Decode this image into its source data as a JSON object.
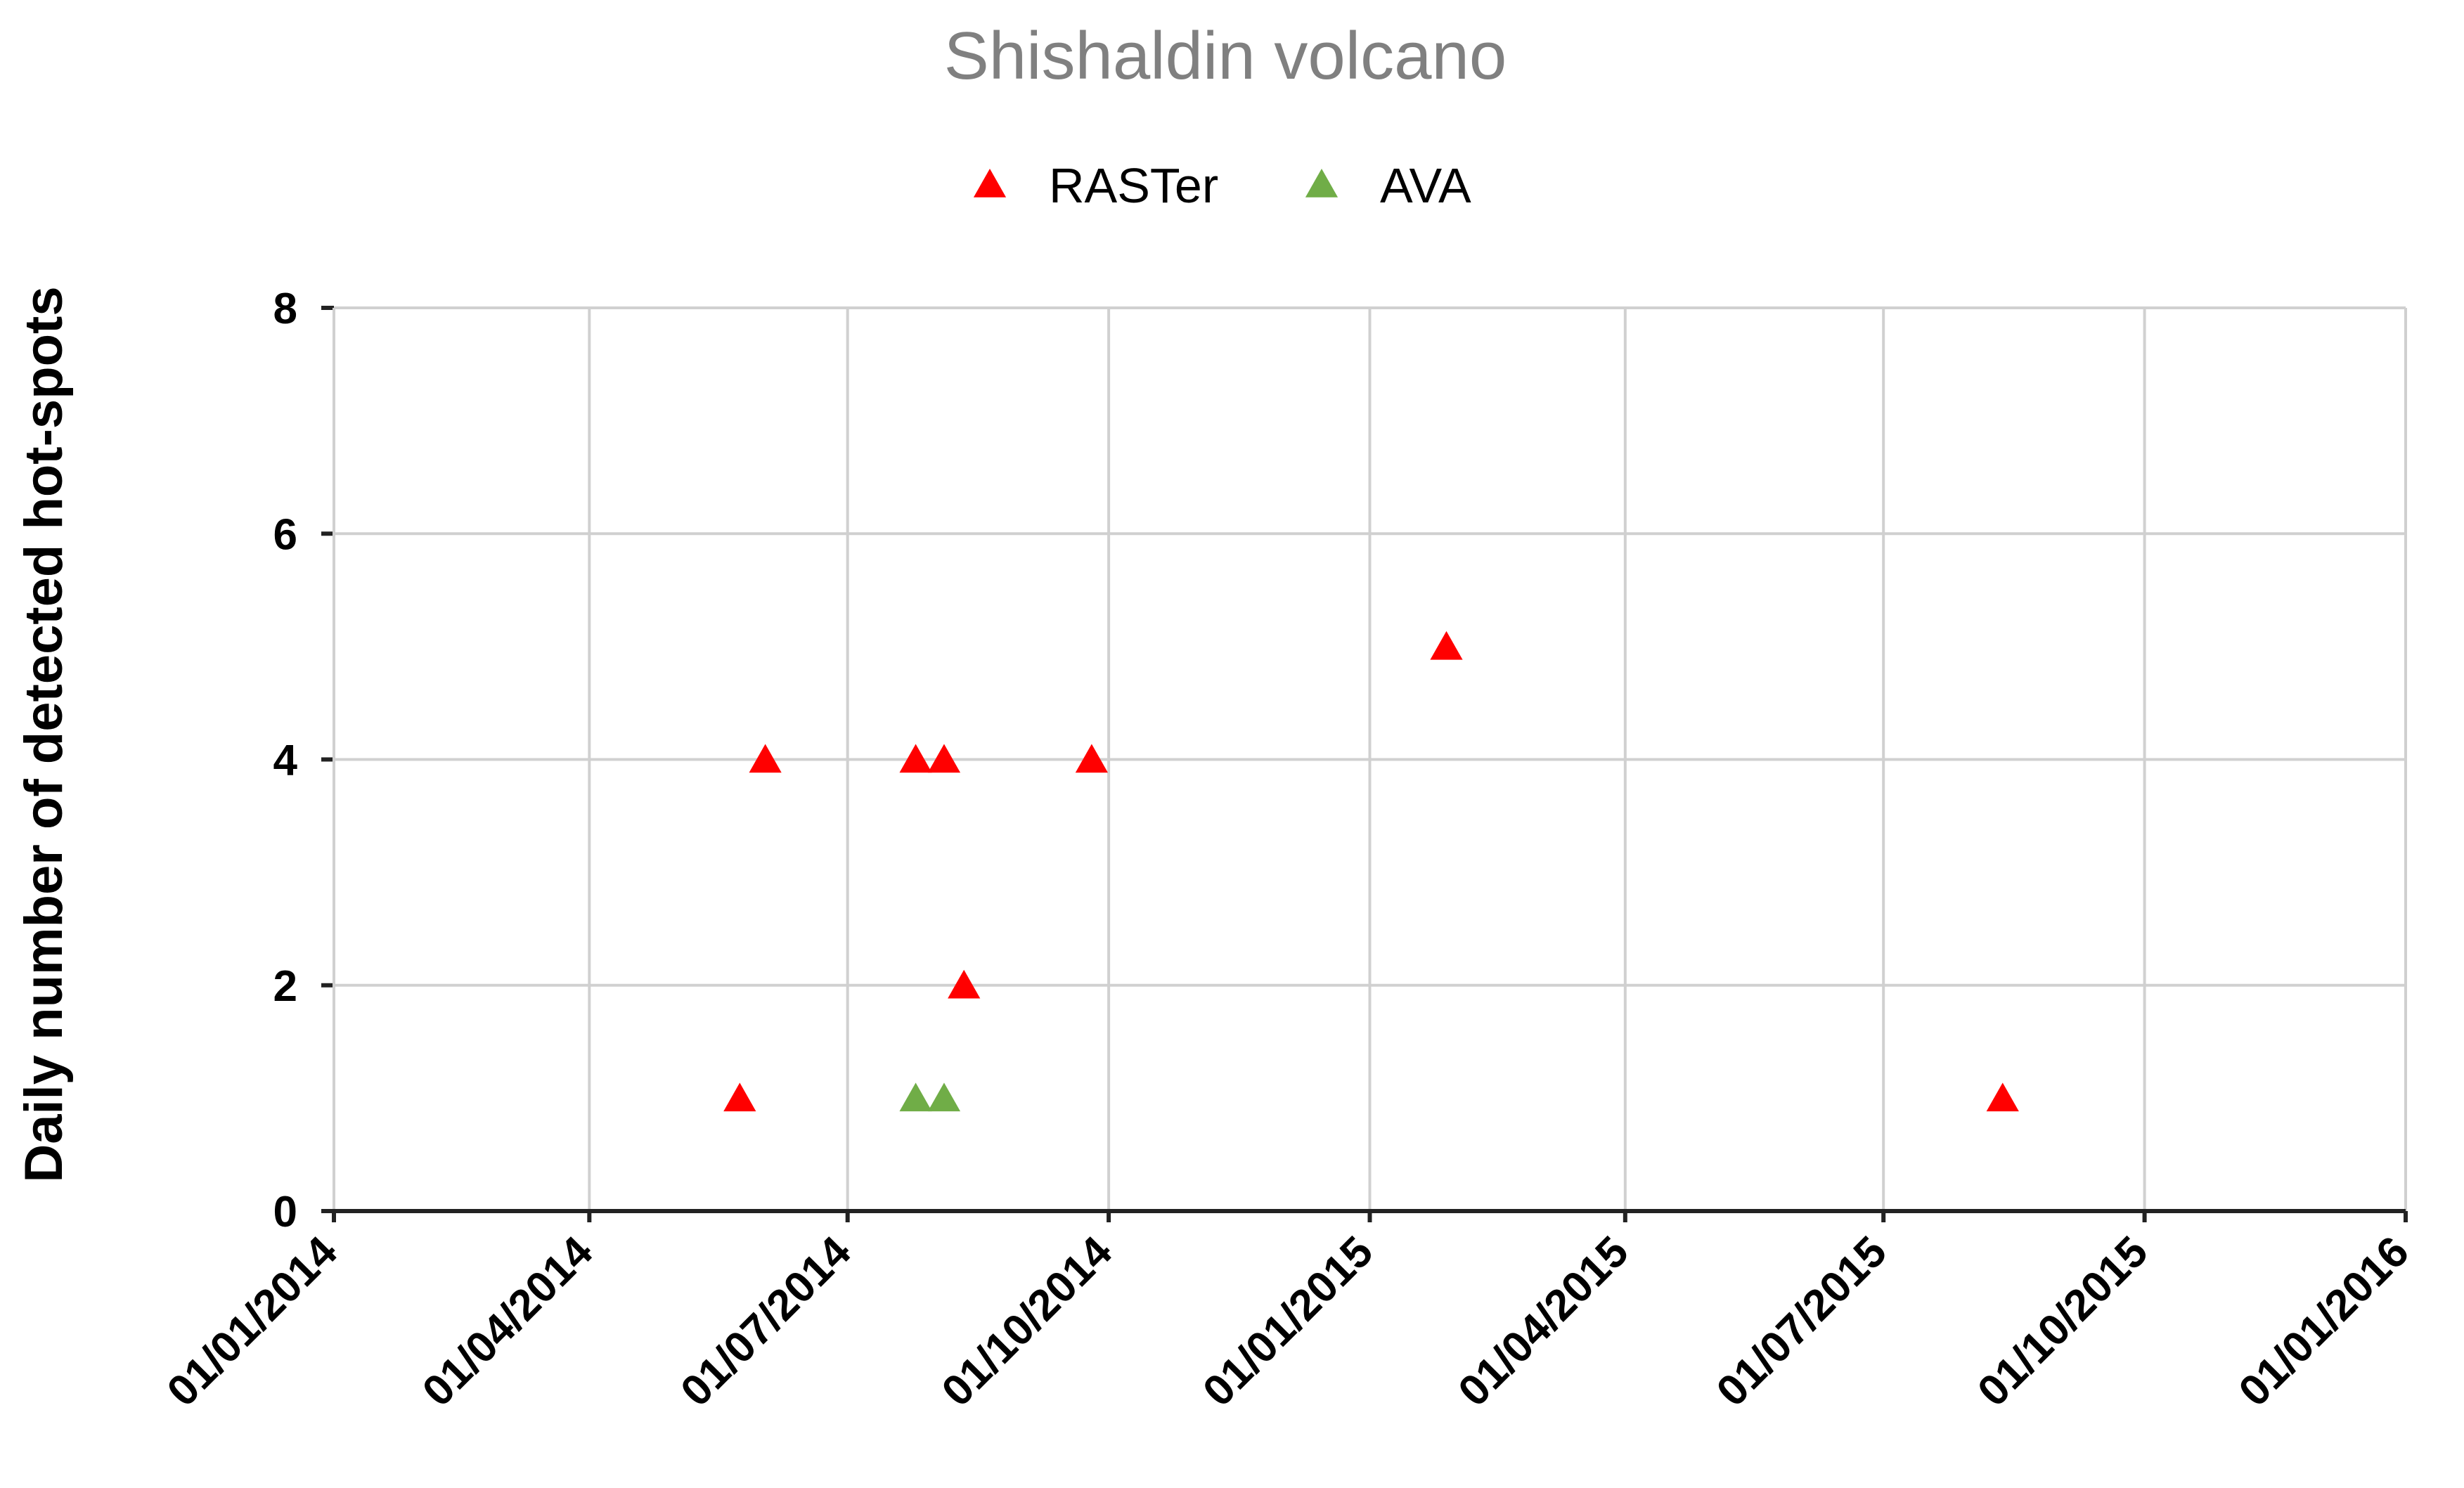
{
  "chart_data": {
    "type": "scatter",
    "title": "Shishaldin volcano",
    "xlabel": "",
    "ylabel": "Daily number of detected hot-spots",
    "x_axis": {
      "type": "date",
      "range": [
        "2014-01-01",
        "2016-01-01"
      ],
      "ticks": [
        "2014-01-01",
        "2014-04-01",
        "2014-07-01",
        "2014-10-01",
        "2015-01-01",
        "2015-04-01",
        "2015-07-01",
        "2015-10-01",
        "2016-01-01"
      ],
      "tick_labels": [
        "01/01/2014",
        "01/04/2014",
        "01/07/2014",
        "01/10/2014",
        "01/01/2015",
        "01/04/2015",
        "01/07/2015",
        "01/10/2015",
        "01/01/2016"
      ]
    },
    "y_axis": {
      "range": [
        0,
        8
      ],
      "ticks": [
        0,
        2,
        4,
        6,
        8
      ],
      "tick_labels": [
        "0",
        "2",
        "4",
        "6",
        "8"
      ]
    },
    "grid": true,
    "legend_position": "top-center",
    "series": [
      {
        "name": "RASTer",
        "color": "#ff0000",
        "marker": "triangle",
        "points": [
          {
            "x": "2014-05-24",
            "y": 1
          },
          {
            "x": "2014-06-02",
            "y": 4
          },
          {
            "x": "2014-07-25",
            "y": 4
          },
          {
            "x": "2014-08-04",
            "y": 4
          },
          {
            "x": "2014-08-11",
            "y": 2
          },
          {
            "x": "2014-09-25",
            "y": 4
          },
          {
            "x": "2015-01-28",
            "y": 5
          },
          {
            "x": "2015-08-12",
            "y": 1
          }
        ]
      },
      {
        "name": "AVA",
        "color": "#70ad47",
        "marker": "triangle",
        "points": [
          {
            "x": "2014-07-25",
            "y": 1
          },
          {
            "x": "2014-08-04",
            "y": 1
          }
        ]
      }
    ]
  }
}
